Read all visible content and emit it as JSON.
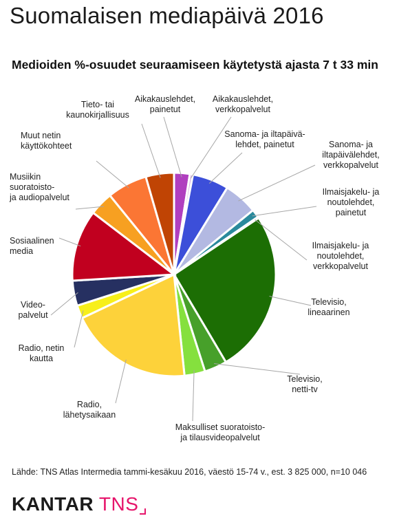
{
  "header": {
    "title": "Suomalaisen mediapäivä 2016"
  },
  "chart_data": {
    "type": "pie",
    "title": "Medioiden %-osuudet seuraamiseen käytetystä ajasta 7 t 33 min",
    "slices": [
      {
        "label": "Aikakauslehdet, painetut",
        "label_lines": [
          "Aikakauslehdet,",
          "painetut"
        ],
        "value": 2.5,
        "color": "#b03fbf"
      },
      {
        "label": "Aikakauslehdet, verkkopalvelut",
        "label_lines": [
          "Aikakauslehdet,",
          "verkkopalvelut"
        ],
        "value": 0.5,
        "color": "#d8b3e0"
      },
      {
        "label": "Sanoma- ja iltapäivälehdet, painetut",
        "label_lines": [
          "Sanoma- ja iltapäivä-",
          "lehdet, painetut"
        ],
        "value": 5.8,
        "color": "#3c4fd9"
      },
      {
        "label": "Sanoma- ja iltapäivälehdet, verkkopalvelut",
        "label_lines": [
          "Sanoma- ja",
          "iltapäivälehdet,",
          "verkkopalvelut"
        ],
        "value": 5.4,
        "color": "#b3b9e2"
      },
      {
        "label": "Ilmaisjakelu- ja noutolehdet, painetut",
        "label_lines": [
          "Ilmaisjakelu- ja",
          "noutolehdet,",
          "painetut"
        ],
        "value": 1.3,
        "color": "#2a8a9c"
      },
      {
        "label": "Ilmaisjakelu- ja noutolehdet, verkkopalvelut",
        "label_lines": [
          "Ilmaisjakelu- ja",
          "noutolehdet,",
          "verkkopalvelut"
        ],
        "value": 0.2,
        "color": "#93d6e0"
      },
      {
        "label": "Televisio, lineaarinen",
        "label_lines": [
          "Televisio,",
          "lineaarinen"
        ],
        "value": 26.0,
        "color": "#1c6e04"
      },
      {
        "label": "Televisio, netti-tv",
        "label_lines": [
          "Televisio,",
          "netti-tv"
        ],
        "value": 3.6,
        "color": "#47a02a"
      },
      {
        "label": "Maksulliset suoratoisto- ja tilausvideopalvelut",
        "label_lines": [
          "Maksulliset suoratoisto-",
          "ja tilausvideopalvelut"
        ],
        "value": 3.3,
        "color": "#85e03e"
      },
      {
        "label": "Radio, lähetysaikaan",
        "label_lines": [
          "Radio,",
          "lähetysaikaan"
        ],
        "value": 19.7,
        "color": "#fdd23a"
      },
      {
        "label": "Radio, netin kautta",
        "label_lines": [
          "Radio, netin",
          "kautta"
        ],
        "value": 2.1,
        "color": "#f7ef1a"
      },
      {
        "label": "Videopalvelut",
        "label_lines": [
          "Video-",
          "palvelut"
        ],
        "value": 4.0,
        "color": "#263061"
      },
      {
        "label": "Sosiaalinen media",
        "label_lines": [
          "Sosiaalinen",
          "media"
        ],
        "value": 11.4,
        "color": "#c1001f"
      },
      {
        "label": "Musiikin suoratoisto- ja audiopalvelut",
        "label_lines": [
          "Musiikin",
          "suoratoisto-",
          "ja audiopalvelut"
        ],
        "value": 3.8,
        "color": "#f7a021"
      },
      {
        "label": "Muut netin käyttökohteet",
        "label_lines": [
          "Muut netin",
          "käyttökohteet"
        ],
        "value": 6.4,
        "color": "#fb7634"
      },
      {
        "label": "Tieto- tai kaunokirjallisuus",
        "label_lines": [
          "Tieto- tai",
          "kaunokirjallisuus"
        ],
        "value": 4.5,
        "color": "#c04404"
      }
    ]
  },
  "footer": {
    "source": "Lähde: TNS Atlas Intermedia tammi-kesäkuu 2016, väestö 15-74 v., est. 3 825 000, n=10 046",
    "logo_primary": "KANTAR",
    "logo_secondary": "TNS"
  }
}
